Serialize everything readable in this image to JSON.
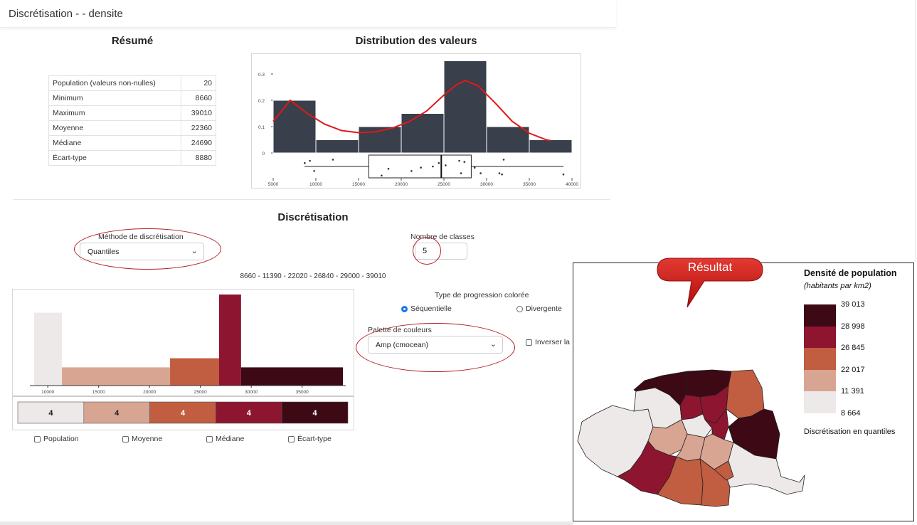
{
  "app": {
    "title": "Discrétisation -  - densite"
  },
  "resume": {
    "title": "Résumé",
    "rows": [
      {
        "label": "Population (valeurs non-nulles)",
        "value": "20"
      },
      {
        "label": "Minimum",
        "value": "8660"
      },
      {
        "label": "Maximum",
        "value": "39010"
      },
      {
        "label": "Moyenne",
        "value": "22360"
      },
      {
        "label": "Médiane",
        "value": "24690"
      },
      {
        "label": "Écart-type",
        "value": "8880"
      }
    ]
  },
  "distribution": {
    "title": "Distribution des valeurs",
    "bin_edges": [
      5000,
      10000,
      15000,
      20000,
      25000,
      30000,
      35000,
      40000
    ],
    "densities": [
      0.2,
      0.05,
      0.1,
      0.15,
      0.35,
      0.1,
      0.05
    ],
    "xticks": [
      "5000",
      "10000",
      "15000",
      "20000",
      "25000",
      "30000",
      "35000",
      "40000"
    ],
    "yticks": [
      {
        "v": 0,
        "t": "0"
      },
      {
        "v": 0.1,
        "t": "0.1"
      },
      {
        "v": 0.2,
        "t": "0.2"
      },
      {
        "v": 0.3,
        "t": "0.3"
      }
    ],
    "kde": [
      [
        5000,
        0.12
      ],
      [
        7000,
        0.2
      ],
      [
        9000,
        0.15
      ],
      [
        11000,
        0.11
      ],
      [
        13000,
        0.085
      ],
      [
        15000,
        0.077
      ],
      [
        17000,
        0.08
      ],
      [
        19000,
        0.095
      ],
      [
        21000,
        0.12
      ],
      [
        23000,
        0.16
      ],
      [
        25000,
        0.22
      ],
      [
        26500,
        0.26
      ],
      [
        27500,
        0.275
      ],
      [
        29000,
        0.255
      ],
      [
        31000,
        0.19
      ],
      [
        33000,
        0.12
      ],
      [
        35000,
        0.075
      ],
      [
        37000,
        0.05
      ],
      [
        37500,
        0.047
      ]
    ],
    "box": {
      "whisker_low": 8660,
      "q1": 16200,
      "median": 24690,
      "q3": 28200,
      "whisker_high": 39010
    },
    "points": [
      [
        8700,
        0.35
      ],
      [
        9300,
        0.25
      ],
      [
        9800,
        0.7
      ],
      [
        12000,
        0.2
      ],
      [
        17700,
        0.9
      ],
      [
        18500,
        0.6
      ],
      [
        21200,
        0.7
      ],
      [
        22300,
        0.55
      ],
      [
        23700,
        0.5
      ],
      [
        24400,
        0.35
      ],
      [
        25200,
        0.45
      ],
      [
        26800,
        0.25
      ],
      [
        27000,
        0.8
      ],
      [
        27400,
        0.3
      ],
      [
        28600,
        0.55
      ],
      [
        29300,
        0.8
      ],
      [
        31500,
        0.8
      ],
      [
        31800,
        0.85
      ],
      [
        32000,
        0.2
      ],
      [
        39000,
        0.85
      ]
    ]
  },
  "discretisation": {
    "title": "Discrétisation",
    "method_label": "Méthode de discrétisation",
    "method_value": "Quantiles",
    "nclasses_label": "Nombre de classes",
    "nclasses_value": "5",
    "breaks_text": "8660 - 11390 - 22020 - 26840 - 29000 - 39010",
    "progression_label": "Type de progression colorée",
    "seq_label": "Séquentielle",
    "div_label": "Divergente",
    "palette_label": "Palette de couleurs",
    "palette_value": "Amp (cmocean)",
    "invert_label": "Inverser la",
    "colors": [
      "#ede9e8",
      "#d9a593",
      "#c15d40",
      "#8e1530",
      "#3c0914"
    ],
    "hist": {
      "breaks": [
        8660,
        11390,
        22020,
        26840,
        29000,
        39010
      ],
      "heights": [
        0.8,
        0.2,
        0.3,
        1.0,
        0.2
      ],
      "xticks": [
        "10000",
        "15000",
        "20000",
        "25000",
        "30000",
        "35000"
      ]
    },
    "counts": [
      "4",
      "4",
      "4",
      "4",
      "4"
    ],
    "checkboxes": [
      "Population",
      "Moyenne",
      "Médiane",
      "Écart-type"
    ]
  },
  "map": {
    "callout": "Résultat",
    "legend_title": "Densité de population",
    "legend_subtitle": "(habitants par km2)",
    "legend_values": [
      "39 013",
      "28 998",
      "26 845",
      "22 017",
      "11 391",
      "8 664"
    ],
    "legend_note": "Discrétisation en quantiles"
  }
}
